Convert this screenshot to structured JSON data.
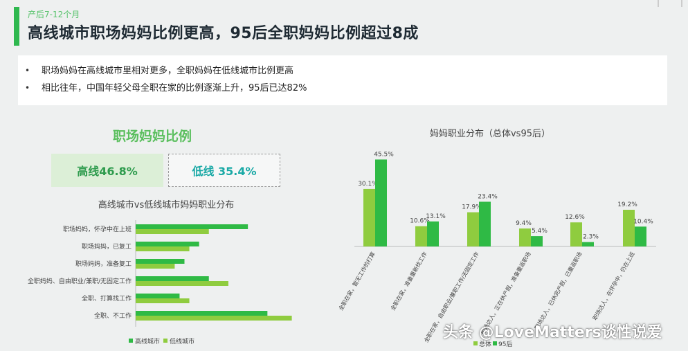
{
  "header": {
    "subtitle": "产后7-12个月",
    "headline": "高线城市职场妈妈比例更高，95后全职妈妈比例超过8成"
  },
  "summary": {
    "bullets": [
      "职场妈妈在高线城市里相对更多，全职妈妈在低线城市比例更高",
      "相比往年，中国年轻父母全职在家的比例逐渐上升，95后已达82%"
    ]
  },
  "left_panel": {
    "title": "职场妈妈比例",
    "stat_high": "高线46.8%",
    "stat_low": "低线 35.4%"
  },
  "watermark": "头条 @LoveMatters谈性说爱",
  "colors": {
    "dark_green": "#2fba45",
    "light_green": "#8fcc3f",
    "accent": "#2fb84f"
  },
  "chart_data": [
    {
      "type": "bar",
      "orientation": "horizontal",
      "title": "高线城市vs低线城市妈妈职业分布",
      "categories": [
        "职场妈妈，怀孕中在上班",
        "职场妈妈，已复工",
        "职场妈妈，准备复工",
        "全职妈妈、自由职业/兼职/无固定工作",
        "全职、打算找工作",
        "全职、不工作"
      ],
      "series": [
        {
          "name": "高线城市",
          "values": [
            23,
            13,
            10,
            15,
            9,
            27
          ]
        },
        {
          "name": "低线城市",
          "values": [
            15,
            11,
            8,
            19,
            11,
            32
          ]
        }
      ],
      "legend": "bottom",
      "grid": false
    },
    {
      "type": "bar",
      "title": "妈妈职业分布（总体vs95后）",
      "categories": [
        "全职在家，暂无工作的打算",
        "全职在家，准备重新找工作",
        "全职在家，自由职业/兼职工作/无固定工作",
        "职场达人，正在休产假，准备重返职场",
        "职场达人，已休完产假，已重返职场",
        "职场达人，在怀孕中，仍在上班"
      ],
      "series": [
        {
          "name": "总体",
          "values": [
            30.1,
            10.6,
            17.9,
            9.4,
            12.6,
            19.2
          ]
        },
        {
          "name": "95后",
          "values": [
            45.5,
            13.1,
            23.4,
            5.4,
            2.3,
            10.4
          ]
        }
      ],
      "value_labels": [
        "30.1%",
        "45.5%",
        "10.6%",
        "13.1%",
        "17.9%",
        "23.4%",
        "9.4%",
        "5.4%",
        "12.6%",
        "2.3%",
        "19.2%",
        "10.4%"
      ],
      "legend": "bottom",
      "grid": false
    }
  ]
}
